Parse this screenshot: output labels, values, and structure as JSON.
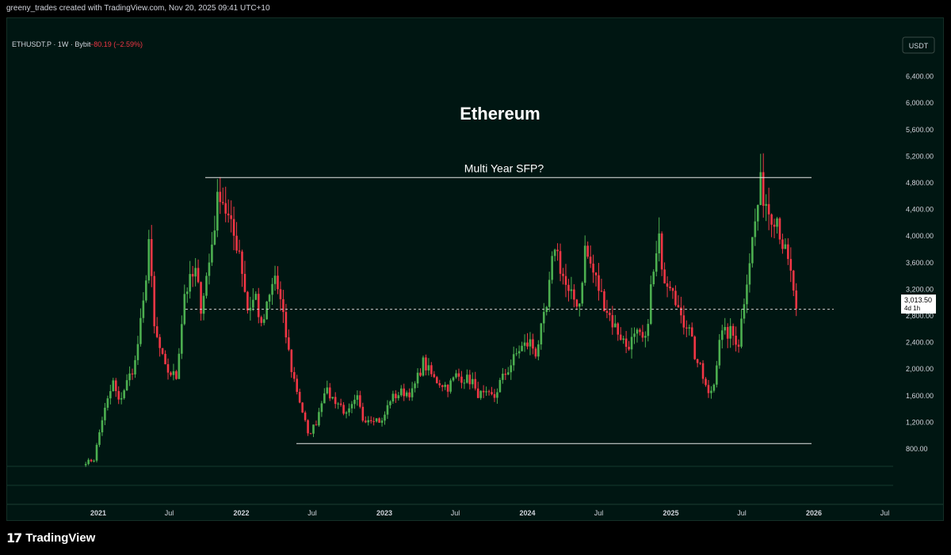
{
  "header": {
    "created_text": "greeny_trades created with TradingView.com, Nov 20, 2025 09:41 UTC+10"
  },
  "symbol_info": {
    "symbol": "ETHUSDT.P · 1W · Bybit",
    "change": "−80.19 (−2.59%)"
  },
  "currency_button": "USDT",
  "chart_title": "Ethereum",
  "annotation": "Multi Year SFP?",
  "price_label": {
    "value": "3,013.50",
    "countdown": "4d 1h"
  },
  "brand": {
    "logo_mark": "17",
    "name": "TradingView"
  },
  "colors": {
    "up": "#4caf50",
    "down": "#f23645",
    "bg": "#001612",
    "line": "#e6e6e6"
  },
  "chart_data": {
    "type": "candlestick",
    "title": "Ethereum",
    "y_ticks": [
      "6,400.00",
      "6,000.00",
      "5,600.00",
      "5,200.00",
      "4,800.00",
      "4,400.00",
      "4,000.00",
      "3,600.00",
      "3,200.00",
      "2,800.00",
      "2,400.00",
      "2,000.00",
      "1,600.00",
      "1,200.00",
      "800.00"
    ],
    "y_tick_values": [
      6400,
      6000,
      5600,
      5200,
      4800,
      4400,
      4000,
      3600,
      3200,
      2800,
      2400,
      2000,
      1600,
      1200,
      800
    ],
    "x_ticks": [
      {
        "label": "2021",
        "date": "2021-01-01",
        "bold": true
      },
      {
        "label": "Jul",
        "date": "2021-07-01",
        "bold": false
      },
      {
        "label": "2022",
        "date": "2022-01-01",
        "bold": true
      },
      {
        "label": "Jul",
        "date": "2022-07-01",
        "bold": false
      },
      {
        "label": "2023",
        "date": "2023-01-01",
        "bold": true
      },
      {
        "label": "Jul",
        "date": "2023-07-01",
        "bold": false
      },
      {
        "label": "2024",
        "date": "2024-01-01",
        "bold": true
      },
      {
        "label": "Jul",
        "date": "2024-07-01",
        "bold": false
      },
      {
        "label": "2025",
        "date": "2025-01-01",
        "bold": true
      },
      {
        "label": "Jul",
        "date": "2025-07-01",
        "bold": false
      },
      {
        "label": "2026",
        "date": "2026-01-01",
        "bold": true
      },
      {
        "label": "Jul",
        "date": "2026-07-01",
        "bold": false
      }
    ],
    "levels": {
      "resistance": 4880,
      "support": 880,
      "current": 2900
    },
    "last_price": 3013.5,
    "close_anchors": [
      [
        "2020-11-30",
        600
      ],
      [
        "2020-12-21",
        640
      ],
      [
        "2021-01-11",
        1250
      ],
      [
        "2021-02-08",
        1800
      ],
      [
        "2021-02-22",
        1500
      ],
      [
        "2021-03-15",
        1800
      ],
      [
        "2021-04-05",
        2100
      ],
      [
        "2021-04-26",
        2950
      ],
      [
        "2021-05-10",
        3950
      ],
      [
        "2021-05-24",
        2600
      ],
      [
        "2021-06-21",
        2000
      ],
      [
        "2021-07-19",
        1880
      ],
      [
        "2021-08-09",
        3150
      ],
      [
        "2021-09-06",
        3450
      ],
      [
        "2021-09-20",
        2950
      ],
      [
        "2021-10-11",
        3600
      ],
      [
        "2021-11-01",
        4500
      ],
      [
        "2021-11-08",
        4700
      ],
      [
        "2021-12-06",
        4100
      ],
      [
        "2021-12-27",
        3800
      ],
      [
        "2022-01-17",
        2900
      ],
      [
        "2022-02-07",
        3100
      ],
      [
        "2022-02-21",
        2600
      ],
      [
        "2022-03-28",
        3400
      ],
      [
        "2022-04-11",
        3000
      ],
      [
        "2022-05-09",
        2000
      ],
      [
        "2022-06-13",
        1200
      ],
      [
        "2022-06-20",
        1000
      ],
      [
        "2022-07-11",
        1200
      ],
      [
        "2022-08-01",
        1700
      ],
      [
        "2022-08-15",
        1600
      ],
      [
        "2022-09-12",
        1450
      ],
      [
        "2022-09-26",
        1300
      ],
      [
        "2022-10-24",
        1550
      ],
      [
        "2022-11-07",
        1250
      ],
      [
        "2022-12-05",
        1270
      ],
      [
        "2022-12-26",
        1200
      ],
      [
        "2023-01-16",
        1550
      ],
      [
        "2023-02-13",
        1650
      ],
      [
        "2023-03-13",
        1650
      ],
      [
        "2023-04-10",
        2100
      ],
      [
        "2023-05-08",
        1850
      ],
      [
        "2023-06-12",
        1730
      ],
      [
        "2023-07-03",
        1900
      ],
      [
        "2023-08-14",
        1820
      ],
      [
        "2023-08-21",
        1650
      ],
      [
        "2023-09-11",
        1600
      ],
      [
        "2023-10-09",
        1580
      ],
      [
        "2023-10-23",
        1800
      ],
      [
        "2023-11-13",
        2000
      ],
      [
        "2023-12-11",
        2300
      ],
      [
        "2024-01-08",
        2400
      ],
      [
        "2024-01-22",
        2250
      ],
      [
        "2024-02-19",
        2900
      ],
      [
        "2024-03-11",
        3900
      ],
      [
        "2024-03-25",
        3550
      ],
      [
        "2024-04-15",
        3100
      ],
      [
        "2024-05-13",
        3000
      ],
      [
        "2024-05-27",
        3800
      ],
      [
        "2024-06-17",
        3450
      ],
      [
        "2024-07-08",
        3100
      ],
      [
        "2024-08-05",
        2700
      ],
      [
        "2024-08-26",
        2500
      ],
      [
        "2024-09-09",
        2350
      ],
      [
        "2024-10-07",
        2500
      ],
      [
        "2024-10-28",
        2400
      ],
      [
        "2024-11-11",
        3200
      ],
      [
        "2024-12-02",
        3900
      ],
      [
        "2024-12-16",
        3400
      ],
      [
        "2025-01-06",
        3300
      ],
      [
        "2025-01-27",
        2700
      ],
      [
        "2025-02-17",
        2700
      ],
      [
        "2025-03-03",
        2200
      ],
      [
        "2025-03-17",
        2000
      ],
      [
        "2025-04-07",
        1600
      ],
      [
        "2025-04-21",
        1780
      ],
      [
        "2025-05-05",
        2500
      ],
      [
        "2025-06-02",
        2550
      ],
      [
        "2025-06-23",
        2400
      ],
      [
        "2025-07-14",
        3400
      ],
      [
        "2025-08-04",
        4200
      ],
      [
        "2025-08-18",
        4750
      ],
      [
        "2025-09-08",
        4400
      ],
      [
        "2025-09-29",
        4300
      ],
      [
        "2025-10-13",
        3900
      ],
      [
        "2025-11-03",
        3400
      ],
      [
        "2025-11-17",
        3000
      ]
    ]
  }
}
